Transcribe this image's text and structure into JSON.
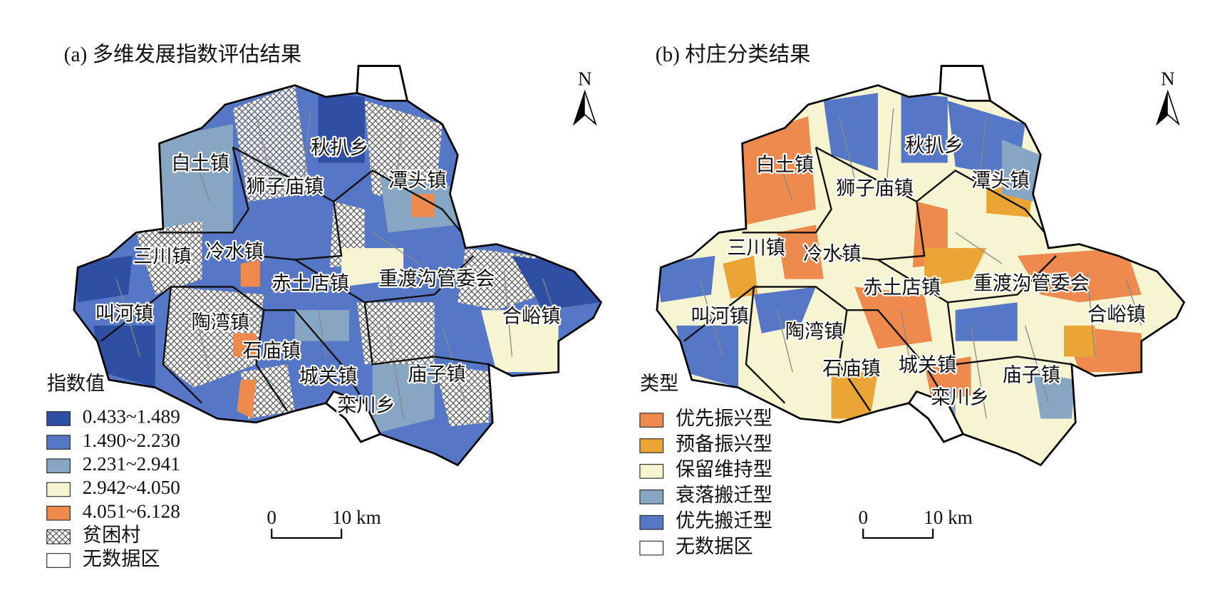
{
  "panels": [
    {
      "title": "(a) 多维发展指数评估结果",
      "north": "N",
      "towns": [
        "白土镇",
        "狮子庙镇",
        "秋扒乡",
        "潭头镇",
        "三川镇",
        "冷水镇",
        "赤土店镇",
        "重渡沟管委会",
        "叫河镇",
        "陶湾镇",
        "合峪镇",
        "石庙镇",
        "城关镇",
        "庙子镇",
        "栾川乡"
      ],
      "legend": {
        "title": "指数值",
        "items": [
          {
            "label": "0.433~1.489",
            "color": "#2f4fa3"
          },
          {
            "label": "1.490~2.230",
            "color": "#5577c6"
          },
          {
            "label": "2.231~2.941",
            "color": "#86a6c3"
          },
          {
            "label": "2.942~4.050",
            "color": "#f7f4d2"
          },
          {
            "label": "4.051~6.128",
            "color": "#ee8a4e"
          },
          {
            "label": "贫困村"
          },
          {
            "label": "无数据区",
            "color": "#ffffff"
          }
        ]
      },
      "scale": {
        "zero": "0",
        "end": "10 km"
      }
    },
    {
      "title": "(b) 村庄分类结果",
      "north": "N",
      "towns": [
        "白土镇",
        "狮子庙镇",
        "秋扒乡",
        "潭头镇",
        "三川镇",
        "冷水镇",
        "赤土店镇",
        "重渡沟管委会",
        "叫河镇",
        "陶湾镇",
        "合峪镇",
        "石庙镇",
        "城关镇",
        "庙子镇",
        "栾川乡"
      ],
      "legend": {
        "title": "类型",
        "items": [
          {
            "label": "优先振兴型",
            "color": "#ee8a4e"
          },
          {
            "label": "预备振兴型",
            "color": "#eaa535"
          },
          {
            "label": "保留维持型",
            "color": "#f7f4d2"
          },
          {
            "label": "衰落搬迁型",
            "color": "#86a6c3"
          },
          {
            "label": "优先搬迁型",
            "color": "#5577c6"
          },
          {
            "label": "无数据区",
            "color": "#ffffff"
          }
        ]
      },
      "scale": {
        "zero": "0",
        "end": "10 km"
      }
    }
  ]
}
